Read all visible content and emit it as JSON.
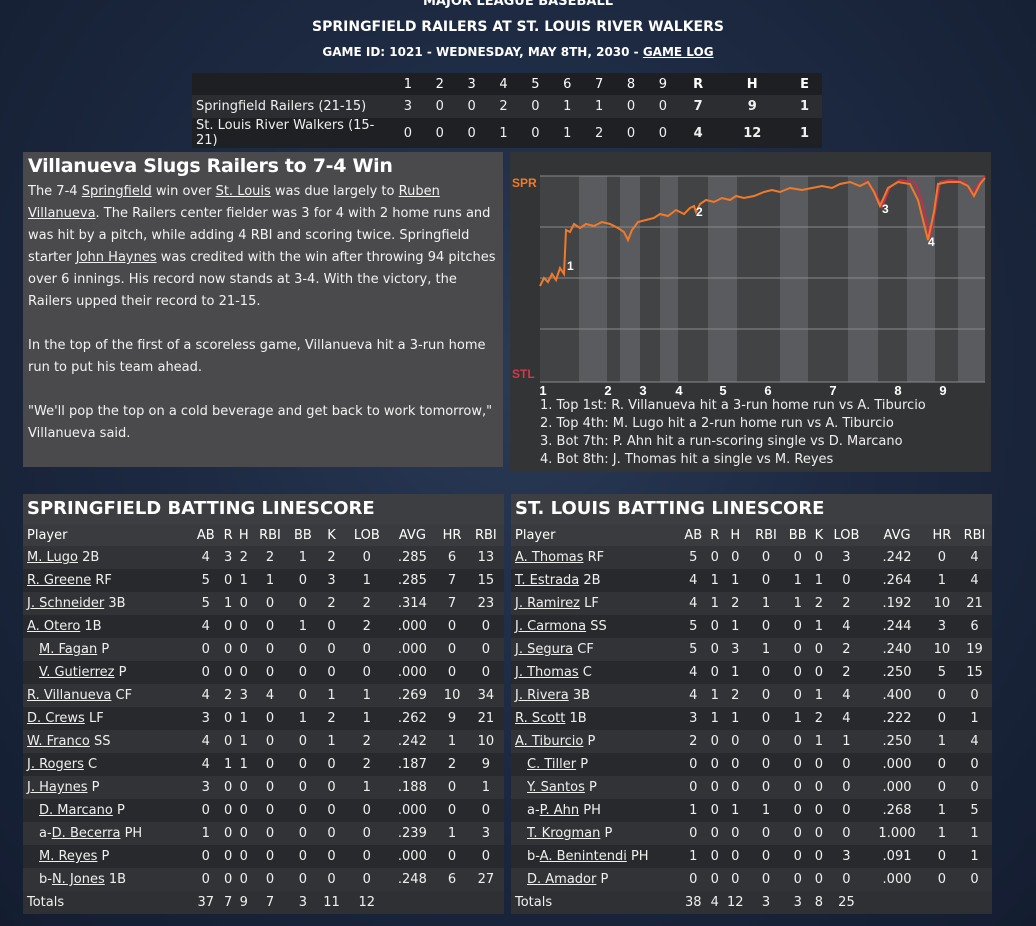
{
  "header": {
    "league": "MAJOR LEAGUE BASEBALL",
    "title": "SPRINGFIELD RAILERS AT ST. LOUIS RIVER WALKERS",
    "subtitle": "GAME ID: 1021 - WEDNESDAY, MAY 8TH, 2030 - ",
    "game_log_link": "GAME LOG"
  },
  "linescore": {
    "headers": [
      "1",
      "2",
      "3",
      "4",
      "5",
      "6",
      "7",
      "8",
      "9",
      "R",
      "H",
      "E"
    ],
    "rows": [
      {
        "team": "Springfield Railers (21-15)",
        "cells": [
          "3",
          "0",
          "0",
          "2",
          "0",
          "1",
          "1",
          "0",
          "0",
          "7",
          "9",
          "1"
        ]
      },
      {
        "team": "St. Louis River Walkers (15-21)",
        "cells": [
          "0",
          "0",
          "0",
          "1",
          "0",
          "1",
          "2",
          "0",
          "0",
          "4",
          "12",
          "1"
        ]
      }
    ]
  },
  "story": {
    "headline": "Villanueva Slugs Railers to 7-4 Win",
    "p1": [
      {
        "t": "The 7-4 "
      },
      {
        "t": "Springfield",
        "link": true
      },
      {
        "t": " win over "
      },
      {
        "t": "St. Louis",
        "link": true
      },
      {
        "t": " was due largely to "
      },
      {
        "t": "Ruben Villanueva",
        "link": true
      },
      {
        "t": ". The Railers center fielder was 3 for 4 with 2 home runs and was hit by a pitch, while adding 4 RBI and scoring twice. Springfield starter "
      },
      {
        "t": "John Haynes",
        "link": true
      },
      {
        "t": " was credited with the win after throwing 94 pitches over 6 innings. His record now stands at 3-4. With the victory, the Railers upped their record to 21-15."
      }
    ],
    "p2": "In the top of the first of a scoreless game, Villanueva hit a 3-run home run to put his team ahead.",
    "p3": "\"We'll pop the top on a cold beverage and get back to work tomorrow,\" Villanueva said."
  },
  "chart": {
    "top_label": "SPR",
    "bottom_label": "STL",
    "innings": [
      "1",
      "2",
      "3",
      "4",
      "5",
      "6",
      "7",
      "8",
      "9"
    ],
    "markers": [
      "1",
      "2",
      "3",
      "4"
    ],
    "colors": {
      "line": "#f07a2a",
      "stl_line": "#c0304a",
      "spr_label": "#f07a2a",
      "stl_label": "#d03a4a"
    },
    "events": [
      "1. Top 1st: R. Villanueva hit a 3-run home run vs A. Tiburcio",
      "2. Top 4th: M. Lugo hit a 2-run home run vs A. Tiburcio",
      "3. Bot 7th: P. Ahn hit a run-scoring single vs D. Marcano",
      "4. Bot 8th: J. Thomas hit a single vs M. Reyes"
    ]
  },
  "batting": {
    "columns": [
      "Player",
      "AB",
      "R",
      "H",
      "RBI",
      "BB",
      "K",
      "LOB",
      "AVG",
      "HR",
      "RBI"
    ],
    "springfield": {
      "title": "SPRINGFIELD BATTING LINESCORE",
      "rows": [
        {
          "pre": "",
          "name": "M. Lugo",
          "pos": " 2B",
          "indent": false,
          "stats": [
            "4",
            "3",
            "2",
            "2",
            "1",
            "2",
            "0",
            ".285",
            "6",
            "13"
          ]
        },
        {
          "pre": "",
          "name": "R. Greene",
          "pos": " RF",
          "indent": false,
          "stats": [
            "5",
            "0",
            "1",
            "1",
            "0",
            "3",
            "1",
            ".285",
            "7",
            "15"
          ]
        },
        {
          "pre": "",
          "name": "J. Schneider",
          "pos": " 3B",
          "indent": false,
          "stats": [
            "5",
            "1",
            "0",
            "0",
            "0",
            "2",
            "2",
            ".314",
            "7",
            "23"
          ]
        },
        {
          "pre": "",
          "name": "A. Otero",
          "pos": " 1B",
          "indent": false,
          "stats": [
            "4",
            "0",
            "0",
            "0",
            "1",
            "0",
            "2",
            ".000",
            "0",
            "0"
          ]
        },
        {
          "pre": "",
          "name": "M. Fagan",
          "pos": " P",
          "indent": true,
          "stats": [
            "0",
            "0",
            "0",
            "0",
            "0",
            "0",
            "0",
            ".000",
            "0",
            "0"
          ]
        },
        {
          "pre": "",
          "name": "V. Gutierrez",
          "pos": " P",
          "indent": true,
          "stats": [
            "0",
            "0",
            "0",
            "0",
            "0",
            "0",
            "0",
            ".000",
            "0",
            "0"
          ]
        },
        {
          "pre": "",
          "name": "R. Villanueva",
          "pos": " CF",
          "indent": false,
          "stats": [
            "4",
            "2",
            "3",
            "4",
            "0",
            "1",
            "1",
            ".269",
            "10",
            "34"
          ]
        },
        {
          "pre": "",
          "name": "D. Crews",
          "pos": " LF",
          "indent": false,
          "stats": [
            "3",
            "0",
            "1",
            "0",
            "1",
            "2",
            "1",
            ".262",
            "9",
            "21"
          ]
        },
        {
          "pre": "",
          "name": "W. Franco",
          "pos": " SS",
          "indent": false,
          "stats": [
            "4",
            "0",
            "1",
            "0",
            "0",
            "1",
            "2",
            ".242",
            "1",
            "10"
          ]
        },
        {
          "pre": "",
          "name": "J. Rogers",
          "pos": " C",
          "indent": false,
          "stats": [
            "4",
            "1",
            "1",
            "0",
            "0",
            "0",
            "2",
            ".187",
            "2",
            "9"
          ]
        },
        {
          "pre": "",
          "name": "J. Haynes",
          "pos": " P",
          "indent": false,
          "stats": [
            "3",
            "0",
            "0",
            "0",
            "0",
            "0",
            "1",
            ".188",
            "0",
            "1"
          ]
        },
        {
          "pre": "",
          "name": "D. Marcano",
          "pos": " P",
          "indent": true,
          "stats": [
            "0",
            "0",
            "0",
            "0",
            "0",
            "0",
            "0",
            ".000",
            "0",
            "0"
          ]
        },
        {
          "pre": "a-",
          "name": "D. Becerra",
          "pos": " PH",
          "indent": true,
          "stats": [
            "1",
            "0",
            "0",
            "0",
            "0",
            "0",
            "0",
            ".239",
            "1",
            "3"
          ]
        },
        {
          "pre": "",
          "name": "M. Reyes",
          "pos": " P",
          "indent": true,
          "stats": [
            "0",
            "0",
            "0",
            "0",
            "0",
            "0",
            "0",
            ".000",
            "0",
            "0"
          ]
        },
        {
          "pre": "b-",
          "name": "N. Jones",
          "pos": " 1B",
          "indent": true,
          "stats": [
            "0",
            "0",
            "0",
            "0",
            "0",
            "0",
            "0",
            ".248",
            "6",
            "27"
          ]
        }
      ],
      "totals": {
        "label": "Totals",
        "stats": [
          "37",
          "7",
          "9",
          "7",
          "3",
          "11",
          "12",
          "",
          "",
          ""
        ]
      }
    },
    "stlouis": {
      "title": "ST. LOUIS BATTING LINESCORE",
      "rows": [
        {
          "pre": "",
          "name": "A. Thomas",
          "pos": " RF",
          "indent": false,
          "stats": [
            "5",
            "0",
            "0",
            "0",
            "0",
            "0",
            "3",
            ".242",
            "0",
            "4"
          ]
        },
        {
          "pre": "",
          "name": "T. Estrada",
          "pos": " 2B",
          "indent": false,
          "stats": [
            "4",
            "1",
            "1",
            "0",
            "1",
            "1",
            "0",
            ".264",
            "1",
            "4"
          ]
        },
        {
          "pre": "",
          "name": "J. Ramirez",
          "pos": " LF",
          "indent": false,
          "stats": [
            "4",
            "1",
            "2",
            "1",
            "1",
            "2",
            "2",
            ".192",
            "10",
            "21"
          ]
        },
        {
          "pre": "",
          "name": "J. Carmona",
          "pos": " SS",
          "indent": false,
          "stats": [
            "5",
            "0",
            "1",
            "0",
            "0",
            "1",
            "4",
            ".244",
            "3",
            "6"
          ]
        },
        {
          "pre": "",
          "name": "J. Segura",
          "pos": " CF",
          "indent": false,
          "stats": [
            "5",
            "0",
            "3",
            "1",
            "0",
            "0",
            "2",
            ".240",
            "10",
            "19"
          ]
        },
        {
          "pre": "",
          "name": "J. Thomas",
          "pos": " C",
          "indent": false,
          "stats": [
            "4",
            "0",
            "1",
            "0",
            "0",
            "0",
            "2",
            ".250",
            "5",
            "15"
          ]
        },
        {
          "pre": "",
          "name": "J. Rivera",
          "pos": " 3B",
          "indent": false,
          "stats": [
            "4",
            "1",
            "2",
            "0",
            "0",
            "1",
            "4",
            ".400",
            "0",
            "0"
          ]
        },
        {
          "pre": "",
          "name": "R. Scott",
          "pos": " 1B",
          "indent": false,
          "stats": [
            "3",
            "1",
            "1",
            "0",
            "1",
            "2",
            "4",
            ".222",
            "0",
            "1"
          ]
        },
        {
          "pre": "",
          "name": "A. Tiburcio",
          "pos": " P",
          "indent": false,
          "stats": [
            "2",
            "0",
            "0",
            "0",
            "0",
            "1",
            "1",
            ".250",
            "1",
            "4"
          ]
        },
        {
          "pre": "",
          "name": "C. Tiller",
          "pos": " P",
          "indent": true,
          "stats": [
            "0",
            "0",
            "0",
            "0",
            "0",
            "0",
            "0",
            ".000",
            "0",
            "0"
          ]
        },
        {
          "pre": "",
          "name": "Y. Santos",
          "pos": " P",
          "indent": true,
          "stats": [
            "0",
            "0",
            "0",
            "0",
            "0",
            "0",
            "0",
            ".000",
            "0",
            "0"
          ]
        },
        {
          "pre": "a-",
          "name": "P. Ahn",
          "pos": " PH",
          "indent": true,
          "stats": [
            "1",
            "0",
            "1",
            "1",
            "0",
            "0",
            "0",
            ".268",
            "1",
            "5"
          ]
        },
        {
          "pre": "",
          "name": "T. Krogman",
          "pos": " P",
          "indent": true,
          "stats": [
            "0",
            "0",
            "0",
            "0",
            "0",
            "0",
            "0",
            "1.000",
            "1",
            "1"
          ]
        },
        {
          "pre": "b-",
          "name": "A. Benintendi",
          "pos": " PH",
          "indent": true,
          "stats": [
            "1",
            "0",
            "0",
            "0",
            "0",
            "0",
            "3",
            ".091",
            "0",
            "1"
          ]
        },
        {
          "pre": "",
          "name": "D. Amador",
          "pos": " P",
          "indent": true,
          "stats": [
            "0",
            "0",
            "0",
            "0",
            "0",
            "0",
            "0",
            ".000",
            "0",
            "0"
          ]
        }
      ],
      "totals": {
        "label": "Totals",
        "stats": [
          "38",
          "4",
          "12",
          "3",
          "3",
          "8",
          "25",
          "",
          "",
          ""
        ]
      }
    }
  }
}
